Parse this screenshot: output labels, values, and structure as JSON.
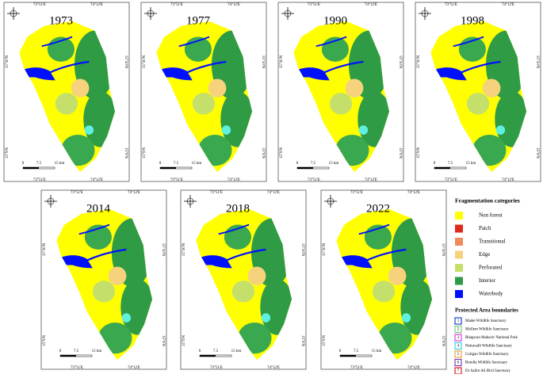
{
  "years": [
    "1973",
    "1977",
    "1990",
    "1998",
    "2014",
    "2018",
    "2022"
  ],
  "map_labels": {
    "lon": [
      "73°51'E",
      "74°12'E"
    ],
    "lat": [
      "15°30'N",
      "15°9'N"
    ],
    "scale": [
      "0",
      "7.5",
      "15 km"
    ]
  },
  "legend": {
    "title": "Fragmentation categories",
    "items": [
      "Non forest",
      "Patch",
      "Transitional",
      "Edge",
      "Perforated",
      "Interior",
      "Waterbody"
    ],
    "colors": [
      "#ffff00",
      "#e02a1e",
      "#f08a5a",
      "#f7d27c",
      "#c5e06a",
      "#2f9b45",
      "#0010ff"
    ]
  },
  "protected_areas": {
    "title": "Protected Area boundaries",
    "numbers": [
      "1",
      "2",
      "3",
      "4",
      "5",
      "6",
      "7"
    ],
    "items": [
      "Madei Wildlife Sanctuary",
      "Mollem Wildlife Sanctuary",
      "Bhagwan Mahavir National Park",
      "Netravalli Wildlife Sanctuary",
      "Cotigao Wildlife Sanctuary",
      "Bondla Wildlife Sanctuary",
      "Dr Salim Ali Bird Sanctuary"
    ],
    "colors": [
      "#1f3fd0",
      "#7ad07a",
      "#e040e0",
      "#40d0e0",
      "#f0a040",
      "#8040c0",
      "#e02020"
    ]
  }
}
